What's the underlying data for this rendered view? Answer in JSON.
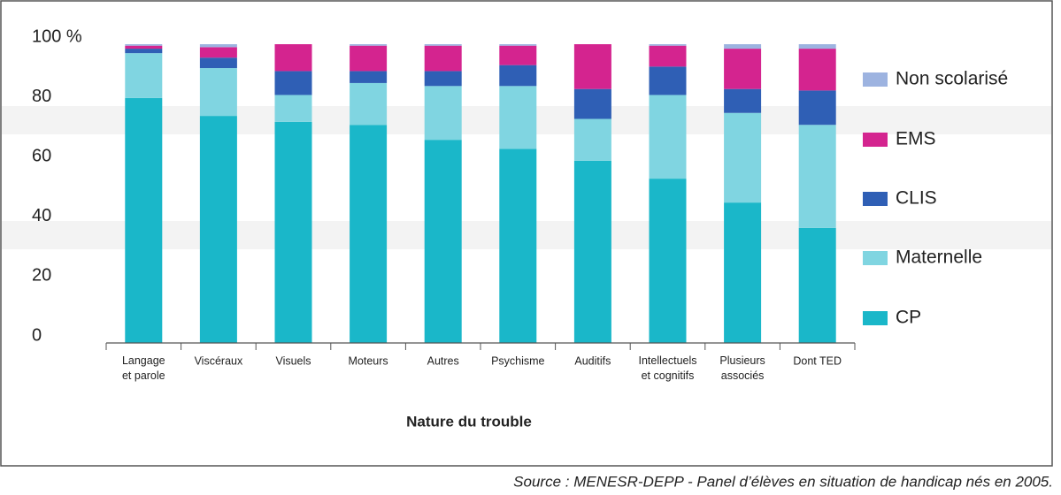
{
  "chart_data": {
    "type": "stacked_bar",
    "x_label": "Nature du trouble",
    "source": "Source : MENESR-DEPP - Panel d’élèves en situation de handicap nés en 2005.",
    "categories": [
      "Langage\net parole",
      "Viscéraux",
      "Visuels",
      "Moteurs",
      "Autres",
      "Psychisme",
      "Auditifs",
      "Intellectuels\net cognitifs",
      "Plusieurs\nassociés",
      "Dont TED"
    ],
    "series": [
      {
        "name": "CP",
        "color": "#1ab7c9",
        "values": [
          82,
          76,
          74,
          73,
          68,
          65,
          61,
          55,
          47,
          38.5
        ]
      },
      {
        "name": "Maternelle",
        "color": "#80d5e1",
        "values": [
          15,
          16,
          9,
          14,
          18,
          21,
          14,
          28,
          30,
          34.5
        ]
      },
      {
        "name": "CLIS",
        "color": "#2f5fb5",
        "values": [
          1.5,
          3.5,
          8,
          4,
          5,
          7,
          10,
          9.5,
          8,
          11.5
        ]
      },
      {
        "name": "EMS",
        "color": "#d4248f",
        "values": [
          1,
          3.5,
          9,
          8.5,
          8.5,
          6.5,
          15,
          7,
          13.5,
          14
        ]
      },
      {
        "name": "Non scolarisé",
        "color": "#9db3e0",
        "values": [
          0.5,
          1,
          0,
          0.5,
          0.5,
          0.5,
          0,
          0.5,
          1.5,
          1.5
        ]
      }
    ],
    "ylim": [
      0,
      100
    ],
    "yticks": [
      0,
      20,
      40,
      60,
      80,
      {
        "value": 100,
        "label": "100 %"
      }
    ]
  }
}
